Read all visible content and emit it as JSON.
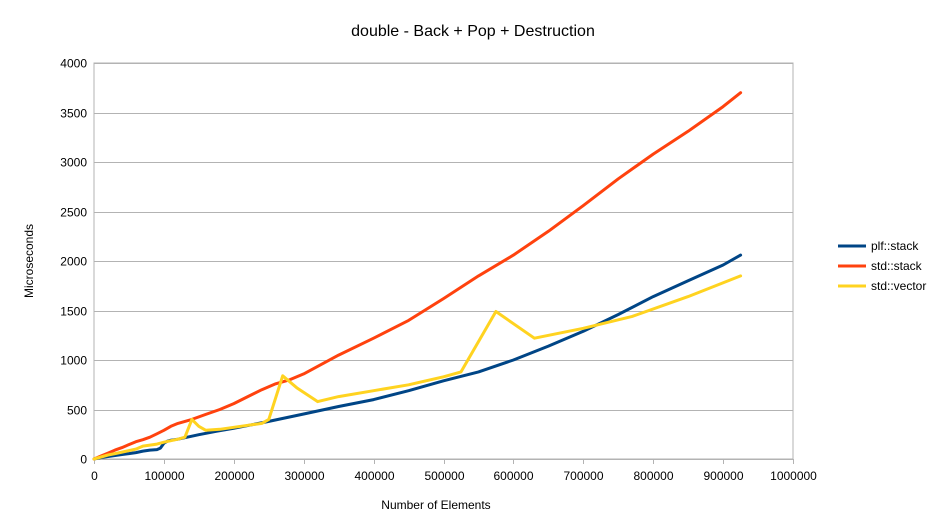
{
  "chart_data": {
    "type": "line",
    "title": "double - Back + Pop + Destruction",
    "xlabel": "Number of Elements",
    "ylabel": "Microseconds",
    "xlim": [
      0,
      1000000
    ],
    "ylim": [
      0,
      4000
    ],
    "xticks": [
      0,
      100000,
      200000,
      300000,
      400000,
      500000,
      600000,
      700000,
      800000,
      900000,
      1000000
    ],
    "yticks": [
      0,
      500,
      1000,
      1500,
      2000,
      2500,
      3000,
      3500,
      4000
    ],
    "grid": true,
    "legend_position": "right",
    "series": [
      {
        "name": "plf::stack",
        "color": "#004586",
        "x": [
          0,
          10000,
          20000,
          30000,
          40000,
          50000,
          60000,
          70000,
          80000,
          90000,
          95000,
          100000,
          105000,
          110000,
          120000,
          130000,
          150000,
          175000,
          200000,
          250000,
          300000,
          350000,
          400000,
          450000,
          500000,
          550000,
          600000,
          650000,
          700000,
          750000,
          800000,
          850000,
          900000,
          925000
        ],
        "y": [
          0,
          15,
          25,
          35,
          45,
          55,
          65,
          80,
          90,
          95,
          110,
          160,
          180,
          190,
          200,
          215,
          245,
          280,
          310,
          380,
          455,
          530,
          600,
          690,
          790,
          880,
          1000,
          1140,
          1290,
          1460,
          1640,
          1800,
          1960,
          2060
        ]
      },
      {
        "name": "std::stack",
        "color": "#ff420e",
        "x": [
          0,
          10000,
          20000,
          30000,
          40000,
          50000,
          60000,
          70000,
          80000,
          90000,
          100000,
          110000,
          120000,
          130000,
          140000,
          160000,
          180000,
          200000,
          220000,
          240000,
          260000,
          280000,
          300000,
          350000,
          400000,
          450000,
          500000,
          550000,
          600000,
          650000,
          700000,
          750000,
          800000,
          850000,
          900000,
          925000
        ],
        "y": [
          0,
          30,
          60,
          90,
          115,
          145,
          175,
          195,
          220,
          255,
          290,
          330,
          360,
          380,
          400,
          450,
          500,
          560,
          630,
          700,
          760,
          800,
          860,
          1050,
          1220,
          1400,
          1620,
          1850,
          2060,
          2300,
          2560,
          2830,
          3080,
          3310,
          3560,
          3700
        ]
      },
      {
        "name": "std::vector",
        "color": "#ffd320",
        "x": [
          0,
          10000,
          20000,
          30000,
          40000,
          50000,
          60000,
          70000,
          80000,
          90000,
          100000,
          110000,
          120000,
          130000,
          140000,
          150000,
          160000,
          180000,
          200000,
          220000,
          240000,
          250000,
          270000,
          290000,
          320000,
          350000,
          400000,
          450000,
          500000,
          525000,
          575000,
          630000,
          700000,
          770000,
          850000,
          925000
        ],
        "y": [
          0,
          20,
          40,
          55,
          70,
          85,
          100,
          130,
          140,
          150,
          170,
          185,
          200,
          220,
          400,
          330,
          290,
          300,
          320,
          340,
          360,
          400,
          840,
          720,
          580,
          630,
          690,
          750,
          830,
          880,
          1490,
          1220,
          1320,
          1440,
          1640,
          1850
        ]
      }
    ]
  }
}
